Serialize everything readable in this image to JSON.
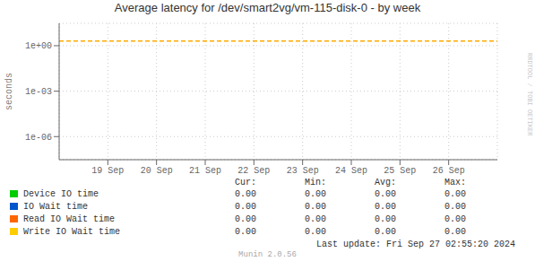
{
  "chart_data": {
    "type": "line",
    "title": "Average latency for /dev/smart2vg/vm-115-disk-0 - by week",
    "y_label": "seconds",
    "log": "y",
    "grid": true,
    "legend": "bottom",
    "xlim": [
      1726272000,
      1727049600
    ],
    "xticks": [
      {
        "value": 1726358400,
        "label": "19 Sep"
      },
      {
        "value": 1726444800,
        "label": "20 Sep"
      },
      {
        "value": 1726531200,
        "label": "21 Sep"
      },
      {
        "value": 1726617600,
        "label": "22 Sep"
      },
      {
        "value": 1726704000,
        "label": "23 Sep"
      },
      {
        "value": 1726790400,
        "label": "24 Sep"
      },
      {
        "value": 1726876800,
        "label": "25 Sep"
      },
      {
        "value": 1726963200,
        "label": "26 Sep"
      }
    ],
    "ylim": [
      3e-08,
      30
    ],
    "yticks": [
      {
        "value": 1e-06,
        "label": "1e-06"
      },
      {
        "value": 0.001,
        "label": "1e-03"
      },
      {
        "value": 1,
        "label": "1e+00"
      }
    ],
    "annotations": [
      {
        "type": "hline",
        "y": 2.0,
        "color": "#ffaa00",
        "line_style": "dashed"
      }
    ],
    "stats_headers": [
      "Cur:",
      "Min:",
      "Avg:",
      "Max:"
    ],
    "series": [
      {
        "name": "Device IO time",
        "color": "#00cc00",
        "stats": [
          {
            "value": 0,
            "label": "0.00"
          },
          {
            "value": 0,
            "label": "0.00"
          },
          {
            "value": 0,
            "label": "0.00"
          },
          {
            "value": 0,
            "label": "0.00"
          }
        ]
      },
      {
        "name": "IO Wait time",
        "color": "#0055cc",
        "stats": [
          {
            "value": 0,
            "label": "0.00"
          },
          {
            "value": 0,
            "label": "0.00"
          },
          {
            "value": 0,
            "label": "0.00"
          },
          {
            "value": 0,
            "label": "0.00"
          }
        ]
      },
      {
        "name": "Read IO Wait time",
        "color": "#ff6600",
        "stats": [
          {
            "value": 0,
            "label": "0.00"
          },
          {
            "value": 0,
            "label": "0.00"
          },
          {
            "value": 0,
            "label": "0.00"
          },
          {
            "value": 0,
            "label": "0.00"
          }
        ]
      },
      {
        "name": "Write IO Wait time",
        "color": "#ffcc00",
        "stats": [
          {
            "value": 0,
            "label": "0.00"
          },
          {
            "value": 0,
            "label": "0.00"
          },
          {
            "value": 0,
            "label": "0.00"
          },
          {
            "value": 0,
            "label": "0.00"
          }
        ]
      }
    ],
    "last_update": "Last update: Fri Sep 27 02:55:20 2024",
    "footer": "Munin 2.0.56",
    "watermark": "RRDTOOL / TOBI OETIKER"
  }
}
